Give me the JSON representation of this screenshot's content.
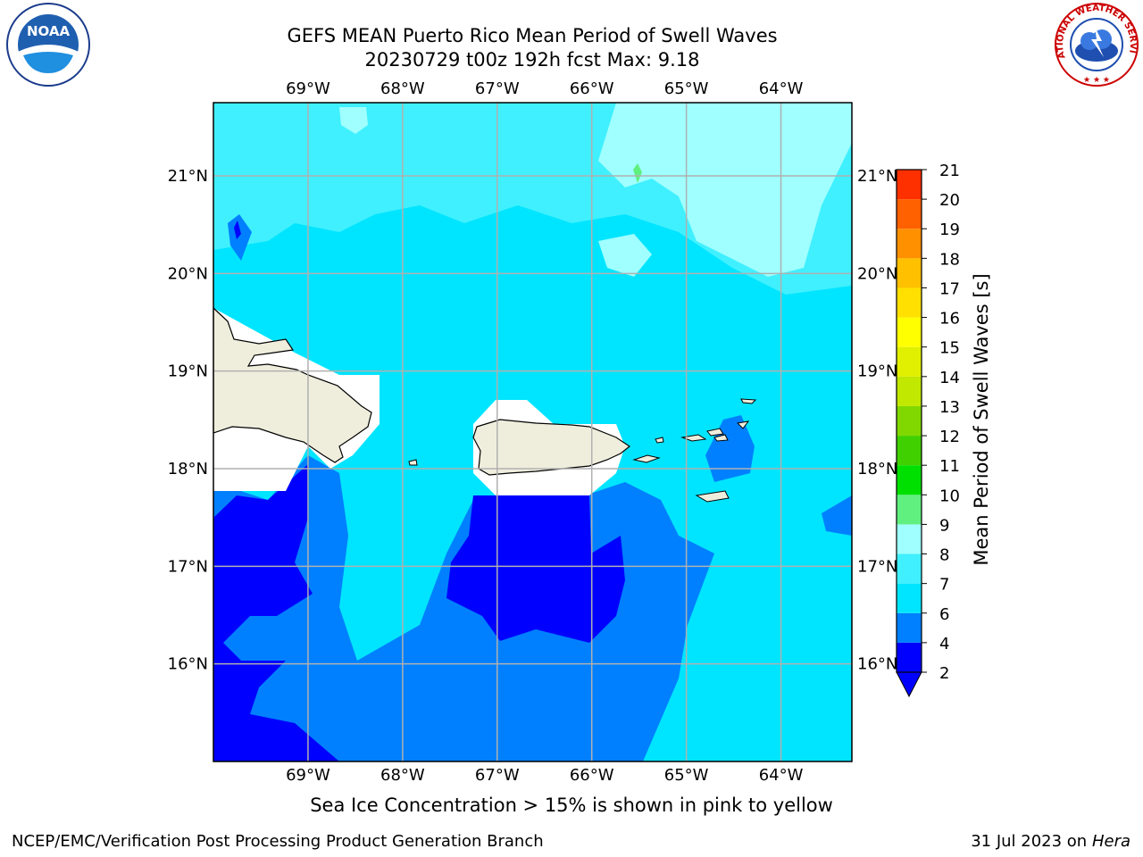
{
  "title": {
    "line1": "GEFS MEAN Puerto Rico Mean Period of Swell Waves",
    "line2": "20230729 t00z 192h fcst   Max: 9.18"
  },
  "map": {
    "lon_labels": [
      "69°W",
      "68°W",
      "67°W",
      "66°W",
      "65°W",
      "64°W"
    ],
    "lat_labels": [
      "21°N",
      "20°N",
      "19°N",
      "18°N",
      "17°N",
      "16°N"
    ],
    "extent": {
      "lon_min": -70.0,
      "lon_max": -63.25,
      "lat_min": 15.0,
      "lat_max": 21.75
    },
    "grid": true,
    "land_color": "#efeedd"
  },
  "colorbar": {
    "label": "Mean Period of Swell Waves [s]",
    "ticks": [
      "2",
      "4",
      "6",
      "7",
      "8",
      "9",
      "10",
      "11",
      "12",
      "13",
      "14",
      "15",
      "16",
      "17",
      "18",
      "19",
      "20",
      "21"
    ],
    "colors": [
      "#0000ff",
      "#0080ff",
      "#00e5ff",
      "#40f0ff",
      "#a0ffff",
      "#60f080",
      "#00e000",
      "#40d000",
      "#80d800",
      "#c0e800",
      "#e0f000",
      "#ffff00",
      "#ffe000",
      "#ffc000",
      "#ff9000",
      "#ff6000",
      "#ff3000",
      "#ff0000"
    ],
    "under_color": "#0000ff"
  },
  "footnote": "Sea Ice Concentration > 15% is shown in pink to yellow",
  "footer": {
    "left": "NCEP/EMC/Verification Post Processing Product Generation Branch",
    "right_prefix": "31 Jul 2023 on ",
    "right_host": "Hera"
  },
  "logos": {
    "noaa": {
      "text": "NOAA"
    },
    "nws": {
      "text": "NATIONAL WEATHER SERVICE"
    }
  }
}
